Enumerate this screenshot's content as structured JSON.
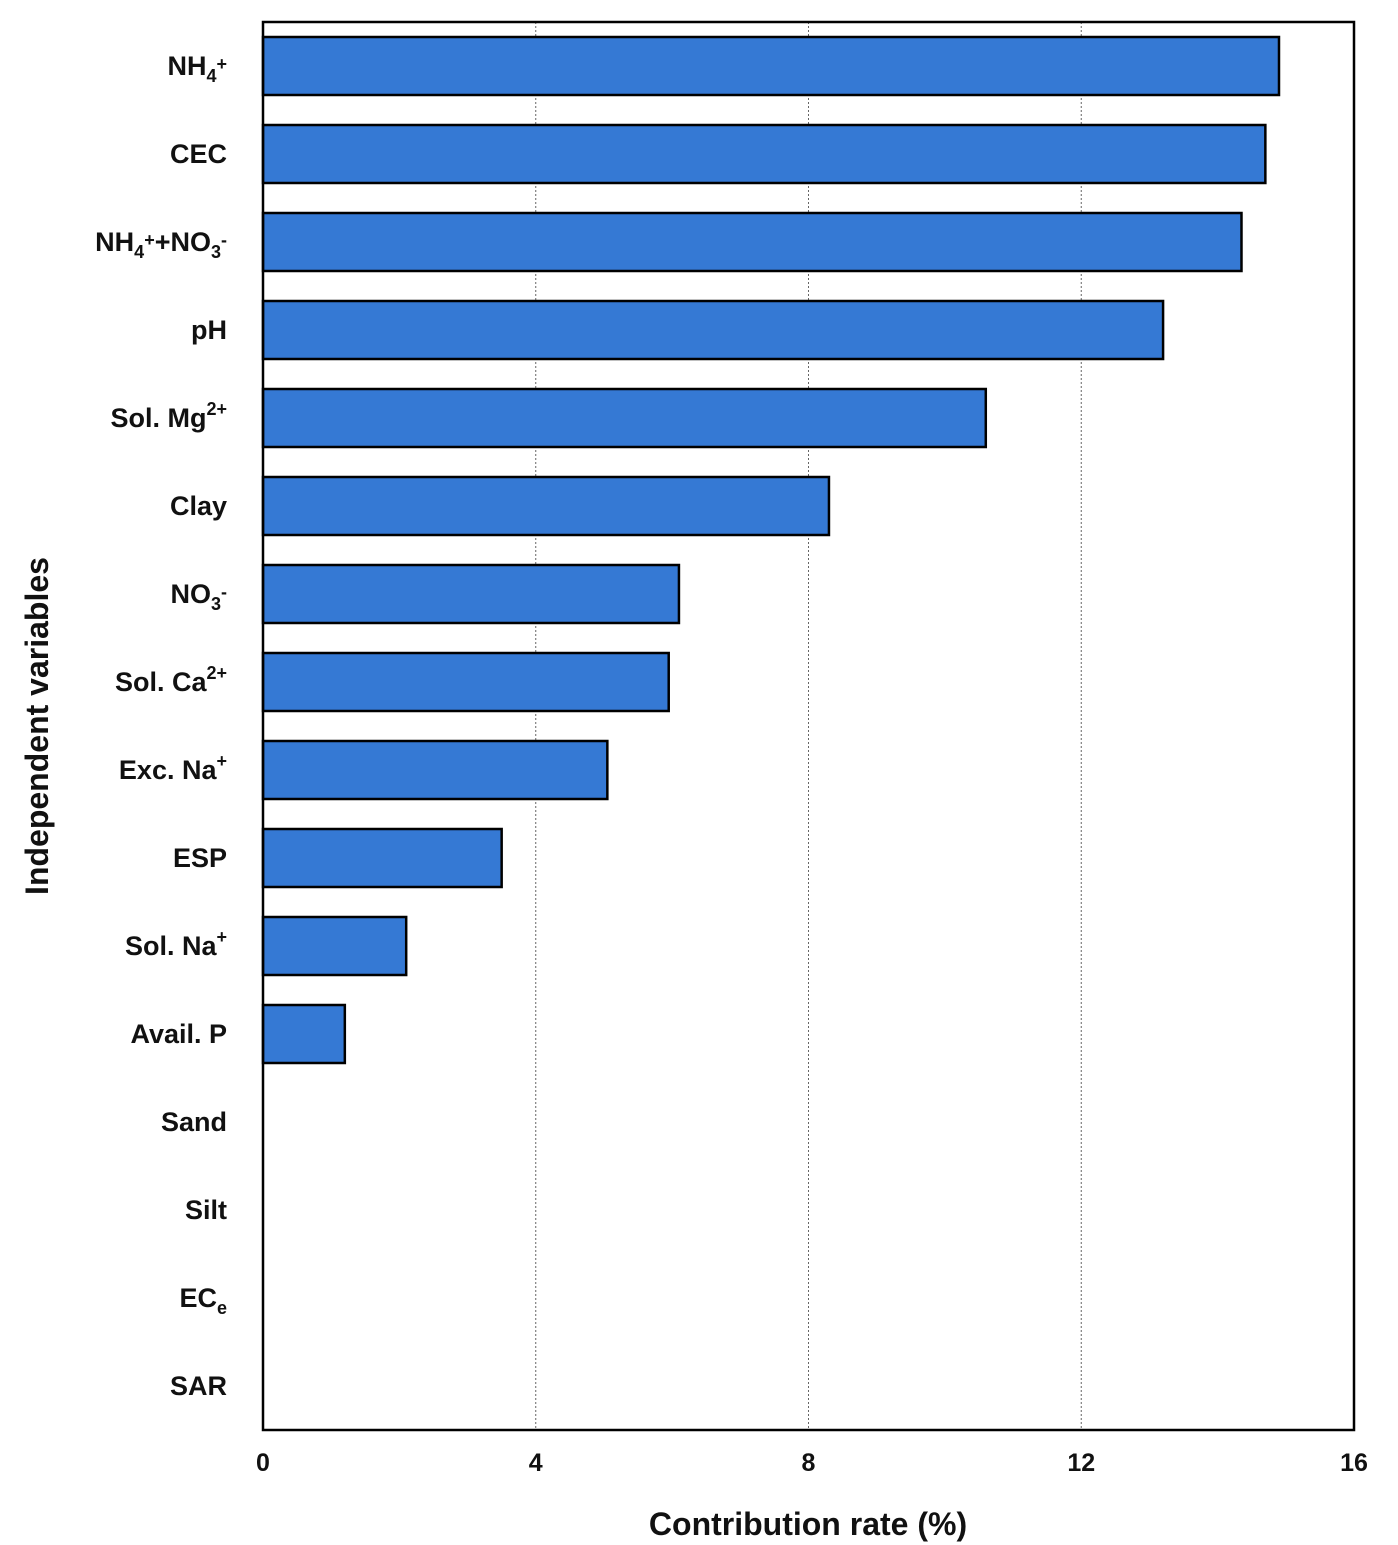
{
  "chart_data": {
    "type": "bar",
    "orientation": "horizontal",
    "xlabel": "Contribution rate (%)",
    "ylabel": "Independent variables",
    "xlim": [
      0,
      16
    ],
    "xticks": [
      "0",
      "4",
      "8",
      "12",
      "16"
    ],
    "grid": "vertical dotted",
    "bar_color": "#3579d4",
    "categories": [
      {
        "base": "NH",
        "sub": "4",
        "sup": "+"
      },
      {
        "base": "CEC"
      },
      {
        "base": "NH",
        "sub": "4",
        "sup": "+",
        "rest": "+NO",
        "sub2": "3",
        "sup2": "-"
      },
      {
        "base": "pH"
      },
      {
        "base": "Sol. Mg",
        "sup": "2+"
      },
      {
        "base": "Clay"
      },
      {
        "base": "NO",
        "sub": "3",
        "sup": "-"
      },
      {
        "base": "Sol. Ca",
        "sup": "2+"
      },
      {
        "base": "Exc. Na",
        "sup": "+"
      },
      {
        "base": "ESP"
      },
      {
        "base": "Sol. Na",
        "sup": "+"
      },
      {
        "base": "Avail. P"
      },
      {
        "base": "Sand"
      },
      {
        "base": "Silt"
      },
      {
        "base": "EC",
        "sub": "e"
      },
      {
        "base": "SAR"
      }
    ],
    "values": [
      14.9,
      14.7,
      14.35,
      13.2,
      10.6,
      8.3,
      6.1,
      5.95,
      5.05,
      3.5,
      2.1,
      1.2,
      0,
      0,
      0,
      0
    ]
  }
}
